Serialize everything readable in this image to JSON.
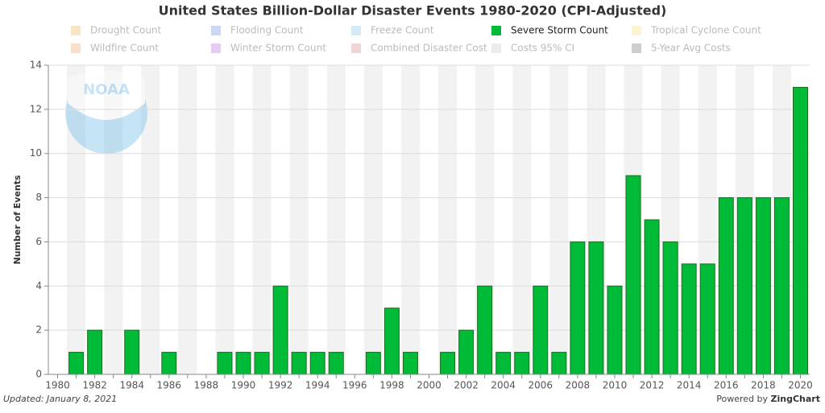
{
  "chart_data": {
    "type": "bar",
    "title": "United States Billion-Dollar Disaster Events 1980-2020 (CPI-Adjusted)",
    "y_label": "Number of Events",
    "logo_text": "NOAA",
    "footer_left": "Updated: January 8, 2021",
    "footer_right_prefix": "Powered by",
    "footer_right_brand": "ZingChart",
    "categories": [
      "1980",
      null,
      "1982",
      null,
      "1984",
      null,
      "1986",
      null,
      "1988",
      null,
      "1990",
      null,
      "1992",
      null,
      "1994",
      null,
      "1996",
      null,
      "1998",
      null,
      "2000",
      null,
      "2002",
      null,
      "2004",
      null,
      "2006",
      null,
      "2008",
      null,
      "2010",
      null,
      "2012",
      null,
      "2014",
      null,
      "2016",
      null,
      "2018",
      null,
      "2020"
    ],
    "series": [
      {
        "name": "Severe Storm Count",
        "color": "#00bb38",
        "values": [
          0,
          1,
          2,
          0,
          2,
          0,
          1,
          0,
          0,
          1,
          1,
          1,
          4,
          1,
          1,
          1,
          0,
          1,
          3,
          1,
          0,
          1,
          2,
          4,
          1,
          1,
          4,
          1,
          6,
          6,
          4,
          9,
          7,
          6,
          5,
          5,
          8,
          8,
          8,
          8,
          13
        ]
      }
    ],
    "legend": [
      {
        "name": "Drought Count",
        "color": "#f3d9a8",
        "active": false
      },
      {
        "name": "Flooding Count",
        "color": "#b3c8ee",
        "active": false
      },
      {
        "name": "Freeze Count",
        "color": "#bfe2f0",
        "active": false
      },
      {
        "name": "Severe Storm Count",
        "color": "#00bb38",
        "active": true
      },
      {
        "name": "Tropical Cyclone Count",
        "color": "#fbefbf",
        "active": false
      },
      {
        "name": "Wildfire Count",
        "color": "#f8d3b3",
        "active": false
      },
      {
        "name": "Winter Storm Count",
        "color": "#dcb6ef",
        "active": false
      },
      {
        "name": "Combined Disaster Cost",
        "color": "#ebc3c3",
        "active": false
      },
      {
        "name": "Costs 95% CI",
        "color": "#e3e3e3",
        "active": false
      },
      {
        "name": "5-Year Avg Costs",
        "color": "#b8b8b8",
        "active": false
      }
    ],
    "ylim": [
      0,
      14
    ],
    "yticks": [
      0,
      2,
      4,
      6,
      8,
      10,
      12,
      14
    ],
    "grid": true
  }
}
